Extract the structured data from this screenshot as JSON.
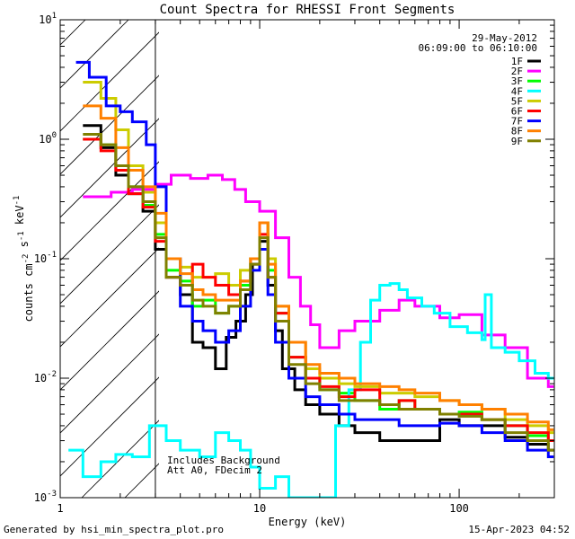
{
  "chart_data": {
    "type": "line",
    "title": "Count Spectra for RHESSI Front Segments",
    "xlabel": "Energy (keV)",
    "ylabel": "counts cm^-2 s^-1 keV^-1",
    "xscale": "log",
    "yscale": "log",
    "xlim": [
      1,
      300
    ],
    "ylim": [
      0.001,
      10
    ],
    "x_tick_labels": [
      "1",
      "10",
      "100"
    ],
    "y_tick_labels": [
      {
        "base": "10",
        "exp": "-3"
      },
      {
        "base": "10",
        "exp": "-2"
      },
      {
        "base": "10",
        "exp": "-1"
      },
      {
        "base": "10",
        "exp": "0"
      },
      {
        "base": "10",
        "exp": "1"
      }
    ],
    "shaded_region": {
      "xmin": 1,
      "xmax": 3,
      "pattern": "diagonal hatch"
    },
    "date": "29-May-2012",
    "time_range": "06:09:00 to 06:10:00",
    "annotations": [
      "Includes Background",
      "Att A0, FDecim 2"
    ],
    "series": [
      {
        "name": "1F",
        "color": "#000000",
        "points": [
          [
            1.3,
            1.3
          ],
          [
            1.6,
            0.85
          ],
          [
            1.9,
            0.5
          ],
          [
            2.2,
            0.35
          ],
          [
            2.6,
            0.25
          ],
          [
            3,
            0.12
          ],
          [
            3.4,
            0.07
          ],
          [
            4,
            0.05
          ],
          [
            4.6,
            0.02
          ],
          [
            5.2,
            0.018
          ],
          [
            6,
            0.012
          ],
          [
            6.8,
            0.022
          ],
          [
            7.6,
            0.03
          ],
          [
            8.5,
            0.05
          ],
          [
            9.2,
            0.09
          ],
          [
            10,
            0.14
          ],
          [
            11,
            0.06
          ],
          [
            12,
            0.025
          ],
          [
            13,
            0.012
          ],
          [
            15,
            0.008
          ],
          [
            17,
            0.006
          ],
          [
            20,
            0.005
          ],
          [
            25,
            0.004
          ],
          [
            30,
            0.0035
          ],
          [
            40,
            0.003
          ],
          [
            50,
            0.003
          ],
          [
            60,
            0.003
          ],
          [
            80,
            0.0045
          ],
          [
            100,
            0.004
          ],
          [
            130,
            0.004
          ],
          [
            170,
            0.0032
          ],
          [
            220,
            0.0028
          ],
          [
            280,
            0.0025
          ]
        ]
      },
      {
        "name": "2F",
        "color": "#ff00ff",
        "points": [
          [
            1.3,
            0.33
          ],
          [
            1.8,
            0.36
          ],
          [
            2.3,
            0.38
          ],
          [
            3,
            0.42
          ],
          [
            3.6,
            0.5
          ],
          [
            4.5,
            0.47
          ],
          [
            5.5,
            0.5
          ],
          [
            6.5,
            0.46
          ],
          [
            7.5,
            0.38
          ],
          [
            8.5,
            0.3
          ],
          [
            10,
            0.25
          ],
          [
            12,
            0.15
          ],
          [
            14,
            0.07
          ],
          [
            16,
            0.04
          ],
          [
            18,
            0.028
          ],
          [
            20,
            0.018
          ],
          [
            25,
            0.025
          ],
          [
            30,
            0.03
          ],
          [
            40,
            0.037
          ],
          [
            50,
            0.045
          ],
          [
            60,
            0.04
          ],
          [
            80,
            0.032
          ],
          [
            100,
            0.034
          ],
          [
            130,
            0.023
          ],
          [
            170,
            0.018
          ],
          [
            220,
            0.01
          ],
          [
            280,
            0.0085
          ]
        ]
      },
      {
        "name": "3F",
        "color": "#00ff00",
        "points": [
          [
            1.3,
            1.0
          ],
          [
            1.6,
            0.9
          ],
          [
            1.9,
            0.6
          ],
          [
            2.2,
            0.4
          ],
          [
            2.6,
            0.28
          ],
          [
            3,
            0.16
          ],
          [
            3.4,
            0.08
          ],
          [
            4,
            0.065
          ],
          [
            4.6,
            0.04
          ],
          [
            5.2,
            0.045
          ],
          [
            6,
            0.035
          ],
          [
            7,
            0.04
          ],
          [
            8,
            0.06
          ],
          [
            9,
            0.1
          ],
          [
            10,
            0.2
          ],
          [
            11,
            0.08
          ],
          [
            12,
            0.035
          ],
          [
            14,
            0.015
          ],
          [
            17,
            0.01
          ],
          [
            20,
            0.008
          ],
          [
            25,
            0.0075
          ],
          [
            30,
            0.0065
          ],
          [
            40,
            0.0055
          ],
          [
            50,
            0.0065
          ],
          [
            60,
            0.0055
          ],
          [
            80,
            0.005
          ],
          [
            100,
            0.0052
          ],
          [
            130,
            0.0045
          ],
          [
            170,
            0.004
          ],
          [
            220,
            0.0033
          ],
          [
            280,
            0.003
          ]
        ]
      },
      {
        "name": "4F",
        "color": "#00ffff",
        "points": [
          [
            1.1,
            0.0025
          ],
          [
            1.3,
            0.0015
          ],
          [
            1.6,
            0.002
          ],
          [
            1.9,
            0.0023
          ],
          [
            2.3,
            0.0022
          ],
          [
            2.8,
            0.004
          ],
          [
            3.4,
            0.003
          ],
          [
            4,
            0.0025
          ],
          [
            5,
            0.0022
          ],
          [
            6,
            0.0035
          ],
          [
            7,
            0.003
          ],
          [
            8,
            0.0025
          ],
          [
            9,
            0.0018
          ],
          [
            10,
            0.0012
          ],
          [
            12,
            0.0015
          ],
          [
            14,
            0.001
          ],
          [
            20,
            0.001
          ],
          [
            24,
            0.004
          ],
          [
            28,
            0.008
          ],
          [
            32,
            0.02
          ],
          [
            36,
            0.045
          ],
          [
            40,
            0.06
          ],
          [
            45,
            0.062
          ],
          [
            50,
            0.055
          ],
          [
            55,
            0.047
          ],
          [
            65,
            0.04
          ],
          [
            75,
            0.035
          ],
          [
            90,
            0.027
          ],
          [
            110,
            0.024
          ],
          [
            130,
            0.021
          ],
          [
            135,
            0.05
          ],
          [
            145,
            0.018
          ],
          [
            170,
            0.0165
          ],
          [
            200,
            0.014
          ],
          [
            240,
            0.011
          ],
          [
            280,
            0.01
          ]
        ]
      },
      {
        "name": "5F",
        "color": "#cccc00",
        "points": [
          [
            1.3,
            3.0
          ],
          [
            1.6,
            2.2
          ],
          [
            1.9,
            1.2
          ],
          [
            2.2,
            0.6
          ],
          [
            2.6,
            0.36
          ],
          [
            3,
            0.2
          ],
          [
            3.4,
            0.1
          ],
          [
            4,
            0.085
          ],
          [
            4.6,
            0.07
          ],
          [
            5.2,
            0.07
          ],
          [
            6,
            0.075
          ],
          [
            7,
            0.06
          ],
          [
            8,
            0.08
          ],
          [
            9,
            0.1
          ],
          [
            10,
            0.2
          ],
          [
            11,
            0.1
          ],
          [
            12,
            0.04
          ],
          [
            14,
            0.02
          ],
          [
            17,
            0.012
          ],
          [
            20,
            0.01
          ],
          [
            25,
            0.009
          ],
          [
            30,
            0.0085
          ],
          [
            40,
            0.0075
          ],
          [
            50,
            0.0075
          ],
          [
            60,
            0.007
          ],
          [
            80,
            0.0065
          ],
          [
            100,
            0.006
          ],
          [
            130,
            0.0055
          ],
          [
            170,
            0.0045
          ],
          [
            220,
            0.004
          ],
          [
            280,
            0.0035
          ]
        ]
      },
      {
        "name": "6F",
        "color": "#ff0000",
        "points": [
          [
            1.3,
            1.0
          ],
          [
            1.6,
            0.8
          ],
          [
            1.9,
            0.55
          ],
          [
            2.2,
            0.35
          ],
          [
            2.6,
            0.27
          ],
          [
            3,
            0.14
          ],
          [
            3.4,
            0.07
          ],
          [
            4,
            0.06
          ],
          [
            4.6,
            0.09
          ],
          [
            5.2,
            0.07
          ],
          [
            6,
            0.06
          ],
          [
            7,
            0.05
          ],
          [
            8,
            0.065
          ],
          [
            9,
            0.1
          ],
          [
            10,
            0.16
          ],
          [
            11,
            0.07
          ],
          [
            12,
            0.035
          ],
          [
            14,
            0.015
          ],
          [
            17,
            0.01
          ],
          [
            20,
            0.0085
          ],
          [
            25,
            0.007
          ],
          [
            30,
            0.008
          ],
          [
            40,
            0.006
          ],
          [
            50,
            0.0065
          ],
          [
            60,
            0.0055
          ],
          [
            80,
            0.005
          ],
          [
            100,
            0.005
          ],
          [
            130,
            0.0045
          ],
          [
            170,
            0.004
          ],
          [
            220,
            0.0035
          ],
          [
            280,
            0.003
          ]
        ]
      },
      {
        "name": "7F",
        "color": "#0000ff",
        "points": [
          [
            1.2,
            4.4
          ],
          [
            1.4,
            3.3
          ],
          [
            1.7,
            1.9
          ],
          [
            2.0,
            1.7
          ],
          [
            2.3,
            1.4
          ],
          [
            2.7,
            0.9
          ],
          [
            3,
            0.4
          ],
          [
            3.4,
            0.1
          ],
          [
            4,
            0.04
          ],
          [
            4.6,
            0.03
          ],
          [
            5.2,
            0.025
          ],
          [
            6,
            0.02
          ],
          [
            7,
            0.025
          ],
          [
            8,
            0.04
          ],
          [
            9,
            0.08
          ],
          [
            10,
            0.12
          ],
          [
            11,
            0.05
          ],
          [
            12,
            0.02
          ],
          [
            14,
            0.01
          ],
          [
            17,
            0.007
          ],
          [
            20,
            0.006
          ],
          [
            25,
            0.005
          ],
          [
            30,
            0.0045
          ],
          [
            40,
            0.0045
          ],
          [
            50,
            0.004
          ],
          [
            60,
            0.004
          ],
          [
            80,
            0.0042
          ],
          [
            100,
            0.004
          ],
          [
            130,
            0.0035
          ],
          [
            170,
            0.003
          ],
          [
            220,
            0.0025
          ],
          [
            280,
            0.0022
          ]
        ]
      },
      {
        "name": "8F",
        "color": "#ff8000",
        "points": [
          [
            1.3,
            1.9
          ],
          [
            1.6,
            1.5
          ],
          [
            1.9,
            0.85
          ],
          [
            2.2,
            0.55
          ],
          [
            2.6,
            0.4
          ],
          [
            3,
            0.24
          ],
          [
            3.4,
            0.1
          ],
          [
            4,
            0.075
          ],
          [
            4.6,
            0.055
          ],
          [
            5.2,
            0.05
          ],
          [
            6,
            0.045
          ],
          [
            7,
            0.045
          ],
          [
            8,
            0.065
          ],
          [
            9,
            0.1
          ],
          [
            10,
            0.2
          ],
          [
            11,
            0.09
          ],
          [
            12,
            0.04
          ],
          [
            14,
            0.02
          ],
          [
            17,
            0.013
          ],
          [
            20,
            0.011
          ],
          [
            25,
            0.01
          ],
          [
            30,
            0.009
          ],
          [
            40,
            0.0085
          ],
          [
            50,
            0.008
          ],
          [
            60,
            0.0075
          ],
          [
            80,
            0.0065
          ],
          [
            100,
            0.006
          ],
          [
            130,
            0.0055
          ],
          [
            170,
            0.005
          ],
          [
            220,
            0.0043
          ],
          [
            280,
            0.0037
          ]
        ]
      },
      {
        "name": "9F",
        "color": "#808000",
        "points": [
          [
            1.3,
            1.1
          ],
          [
            1.6,
            0.9
          ],
          [
            1.9,
            0.6
          ],
          [
            2.2,
            0.4
          ],
          [
            2.6,
            0.3
          ],
          [
            3,
            0.15
          ],
          [
            3.4,
            0.07
          ],
          [
            4,
            0.06
          ],
          [
            4.6,
            0.045
          ],
          [
            5.2,
            0.04
          ],
          [
            6,
            0.035
          ],
          [
            7,
            0.04
          ],
          [
            8,
            0.055
          ],
          [
            9,
            0.09
          ],
          [
            10,
            0.15
          ],
          [
            11,
            0.07
          ],
          [
            12,
            0.03
          ],
          [
            14,
            0.013
          ],
          [
            17,
            0.009
          ],
          [
            20,
            0.008
          ],
          [
            25,
            0.0065
          ],
          [
            30,
            0.0065
          ],
          [
            40,
            0.006
          ],
          [
            50,
            0.0055
          ],
          [
            60,
            0.0055
          ],
          [
            80,
            0.005
          ],
          [
            100,
            0.0048
          ],
          [
            130,
            0.0045
          ],
          [
            170,
            0.0035
          ],
          [
            220,
            0.003
          ],
          [
            280,
            0.0025
          ]
        ]
      }
    ]
  },
  "footer": {
    "left": "Generated by hsi_min_spectra_plot.pro",
    "right": "15-Apr-2023 04:52"
  }
}
